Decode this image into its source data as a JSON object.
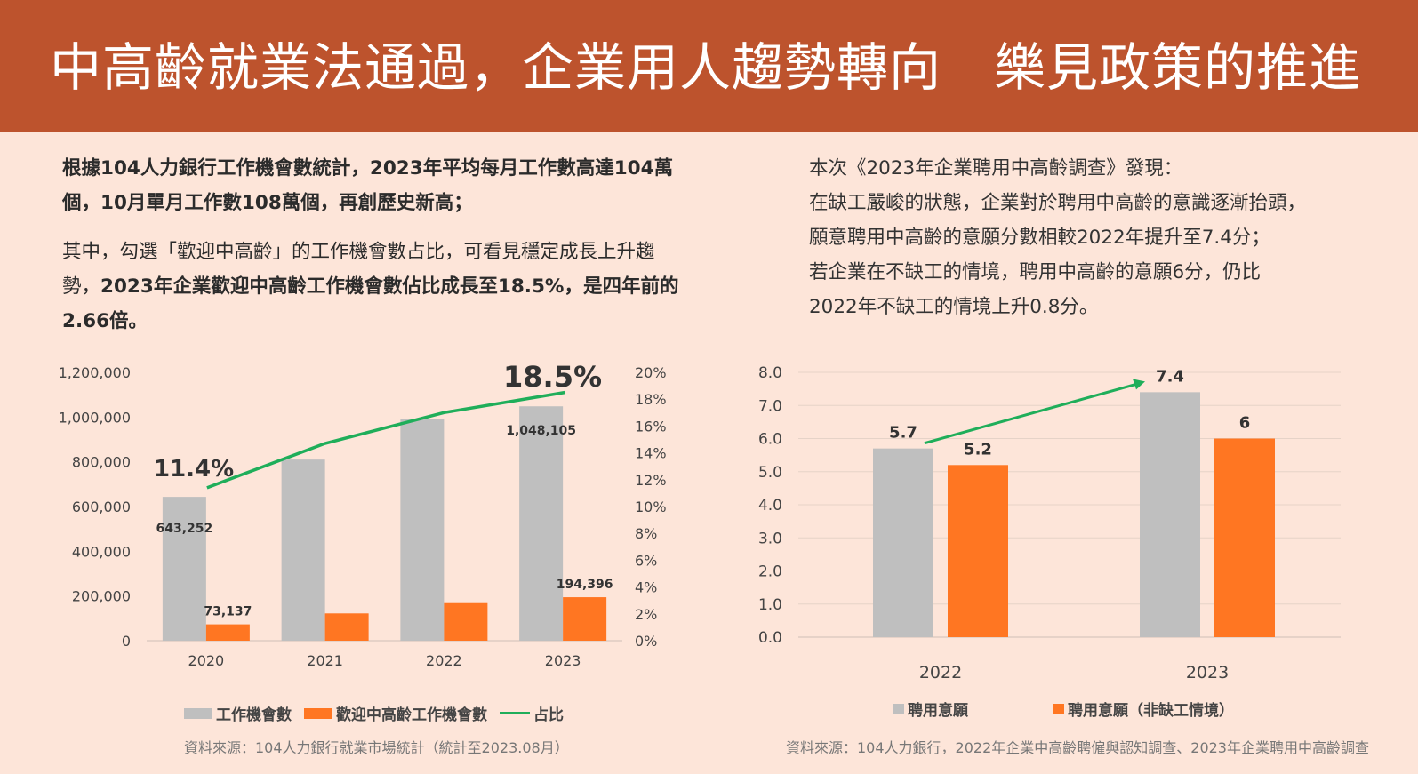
{
  "page": {
    "title": "中高齡就業法通過，企業用人趨勢轉向　樂見政策的推進",
    "left": {
      "para1_bold": "根據104人力銀行工作機會數統計，2023年平均每月工作數高達104萬個，10月單月工作數108萬個，再創歷史新高；",
      "para2_normal": "其中，勾選「歡迎中高齡」的工作機會數占比，可看見穩定成長上升趨勢，",
      "para2_bold": "2023年企業歡迎中高齡工作機會數佔比成長至18.5%，是四年前的2.66倍。",
      "source": "資料來源：104人力銀行就業市場統計（統計至2023.08月）"
    },
    "right": {
      "lines": [
        "本次《2023年企業聘用中高齡調查》發現：",
        "在缺工嚴峻的狀態，企業對於聘用中高齡的意識逐漸抬頭，",
        "願意聘用中高齡的意願分數相較2022年提升至7.4分；",
        "若企業在不缺工的情境，聘用中高齡的意願6分，仍比",
        "2022年不缺工的情境上升0.8分。"
      ],
      "source": "資料來源：104人力銀行，2022年企業中高齡聘僱與認知調查、2023年企業聘用中高齡調查"
    }
  },
  "colors": {
    "gray_bar": "#bfbfbf",
    "orange_bar": "#ff7622",
    "green_line": "#1fae5a",
    "axis_text": "#444444",
    "header": "#bd532d"
  },
  "chart_data": [
    {
      "type": "bar",
      "categories": [
        "2020",
        "2021",
        "2022",
        "2023"
      ],
      "series": [
        {
          "name": "工作機會數",
          "values": [
            643252,
            810000,
            990000,
            1048105
          ],
          "labels": [
            "643,252",
            "",
            "",
            "1,048,105"
          ],
          "color": "#bfbfbf"
        },
        {
          "name": "歡迎中高齡工作機會數",
          "values": [
            73137,
            122000,
            168000,
            194396
          ],
          "labels": [
            "73,137",
            "",
            "",
            "194,396"
          ],
          "color": "#ff7622"
        }
      ],
      "line_series": {
        "name": "占比",
        "values": [
          11.4,
          14.7,
          17.0,
          18.5
        ],
        "color": "#1fae5a",
        "callouts": [
          "11.4%",
          "18.5%"
        ]
      },
      "ylim": [
        0,
        1200000
      ],
      "yticks": [
        "0",
        "200,000",
        "400,000",
        "600,000",
        "800,000",
        "1,000,000",
        "1,200,000"
      ],
      "y2lim": [
        0,
        20
      ],
      "y2ticks": [
        "0%",
        "2%",
        "4%",
        "6%",
        "8%",
        "10%",
        "12%",
        "14%",
        "16%",
        "18%",
        "20%"
      ],
      "legend": "bottom"
    },
    {
      "type": "bar",
      "categories": [
        "2022",
        "2023"
      ],
      "series": [
        {
          "name": "聘用意願",
          "values": [
            5.7,
            7.4
          ],
          "labels": [
            "5.7",
            "7.4"
          ],
          "color": "#bfbfbf"
        },
        {
          "name": "聘用意願（非缺工情境）",
          "values": [
            5.2,
            6
          ],
          "labels": [
            "5.2",
            "6"
          ],
          "color": "#ff7622"
        }
      ],
      "ylim": [
        0,
        8
      ],
      "yticks": [
        "0.0",
        "1.0",
        "2.0",
        "3.0",
        "4.0",
        "5.0",
        "6.0",
        "7.0",
        "8.0"
      ],
      "grid": true,
      "trend_arrow": true,
      "legend": "bottom"
    }
  ]
}
